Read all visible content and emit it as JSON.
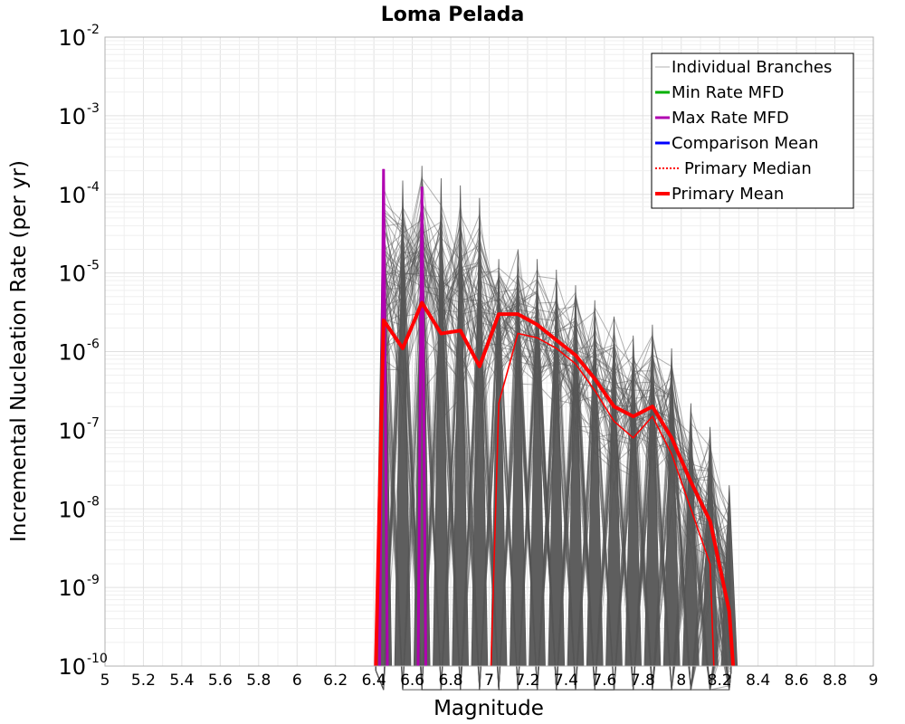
{
  "chart_data": {
    "type": "line",
    "title": "Loma Pelada",
    "xlabel": "Magnitude",
    "ylabel": "Incremental Nucleation Rate (per yr)",
    "xlim": [
      5,
      9
    ],
    "ylim": [
      1e-10,
      0.01
    ],
    "yscale": "log",
    "grid": true,
    "legend_position": "top-right",
    "x_ticks": [
      "5",
      "5.2",
      "5.4",
      "5.6",
      "5.8",
      "6",
      "6.2",
      "6.4",
      "6.6",
      "6.8",
      "7",
      "7.2",
      "7.4",
      "7.6",
      "7.8",
      "8",
      "8.2",
      "8.4",
      "8.6",
      "8.8",
      "9"
    ],
    "y_ticks": [
      {
        "value": 1e-10,
        "base": "10",
        "exp": "-10"
      },
      {
        "value": 1e-09,
        "base": "10",
        "exp": "-9"
      },
      {
        "value": 1e-08,
        "base": "10",
        "exp": "-8"
      },
      {
        "value": 1e-07,
        "base": "10",
        "exp": "-7"
      },
      {
        "value": 1e-06,
        "base": "10",
        "exp": "-6"
      },
      {
        "value": 1e-05,
        "base": "10",
        "exp": "-5"
      },
      {
        "value": 0.0001,
        "base": "10",
        "exp": "-4"
      },
      {
        "value": 0.001,
        "base": "10",
        "exp": "-3"
      },
      {
        "value": 0.01,
        "base": "10",
        "exp": "-2"
      }
    ],
    "colors": {
      "individual_branches": "#555555",
      "min_rate": "#00b000",
      "max_rate": "#b000b0",
      "comparison_mean": "#0000ff",
      "primary_median": "#ff0000",
      "primary_mean": "#ff0000"
    },
    "legend": [
      {
        "label": "Individual Branches",
        "key": "individual_branches",
        "style": "thin"
      },
      {
        "label": "Min Rate MFD",
        "key": "min_rate",
        "style": "solid"
      },
      {
        "label": "Max Rate MFD",
        "key": "max_rate",
        "style": "solid"
      },
      {
        "label": "Comparison Mean",
        "key": "comparison_mean",
        "style": "solid"
      },
      {
        "label": "Primary Median",
        "key": "primary_median",
        "style": "dotted"
      },
      {
        "label": "Primary Mean",
        "key": "primary_mean",
        "style": "thick"
      }
    ],
    "series": [
      {
        "key": "primary_mean",
        "x": [
          6.45,
          6.55,
          6.65,
          6.75,
          6.85,
          6.95,
          7.05,
          7.15,
          7.25,
          7.35,
          7.45,
          7.55,
          7.65,
          7.75,
          7.85,
          7.95,
          8.05,
          8.15,
          8.25
        ],
        "y": [
          2.5e-06,
          1.1e-06,
          4.2e-06,
          1.7e-06,
          1.85e-06,
          6.5e-07,
          3e-06,
          3e-06,
          2.2e-06,
          1.4e-06,
          9e-07,
          4.5e-07,
          2e-07,
          1.5e-07,
          2e-07,
          8e-08,
          2.2e-08,
          7e-09,
          5e-10
        ]
      },
      {
        "key": "primary_median",
        "x": [
          7.05,
          7.15,
          7.25,
          7.35,
          7.45,
          7.55,
          7.65,
          7.75,
          7.85,
          7.95,
          8.05,
          8.15
        ],
        "y": [
          2.2e-07,
          1.7e-06,
          1.5e-06,
          1.1e-06,
          7e-07,
          3.2e-07,
          1.3e-07,
          8e-08,
          1.5e-07,
          5e-08,
          1e-08,
          2e-09
        ]
      },
      {
        "key": "max_rate",
        "x": [
          6.45,
          6.65
        ],
        "y": [
          0.00021,
          0.000125
        ]
      },
      {
        "key": "branch_envelope_peaks",
        "x": [
          6.45,
          6.55,
          6.65,
          6.75,
          6.85,
          6.95,
          7.05,
          7.15,
          7.25,
          7.35,
          7.45,
          7.55,
          7.65,
          7.75,
          7.85,
          7.95,
          8.05,
          8.15,
          8.25
        ],
        "y": [
          0.00021,
          0.00015,
          0.00023,
          0.00016,
          0.00013,
          9e-05,
          1.5e-05,
          2e-05,
          1.5e-05,
          1.1e-05,
          7e-06,
          4.5e-06,
          2.8e-06,
          1.6e-06,
          2.2e-06,
          1.1e-06,
          2.2e-07,
          1.1e-07,
          2e-08
        ]
      }
    ]
  }
}
